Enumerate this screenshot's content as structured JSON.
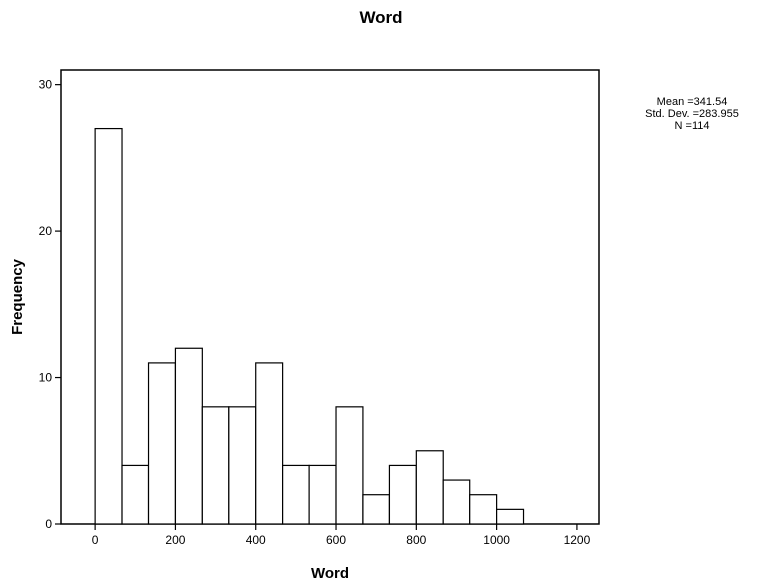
{
  "chart_data": {
    "type": "bar",
    "title": "Word",
    "xlabel": "Word",
    "ylabel": "Frequency",
    "bin_edges": [
      0,
      67,
      133,
      200,
      267,
      333,
      400,
      467,
      533,
      600,
      667,
      733,
      800,
      867,
      933,
      1000,
      1067
    ],
    "values": [
      27,
      4,
      11,
      12,
      8,
      8,
      11,
      4,
      4,
      8,
      2,
      4,
      5,
      3,
      2,
      1
    ],
    "xlim": [
      -85,
      1255
    ],
    "ylim": [
      0,
      31
    ],
    "x_ticks": [
      0,
      200,
      400,
      600,
      800,
      1000,
      1200
    ],
    "y_ticks": [
      0,
      10,
      20,
      30
    ],
    "x_tick_labels": [
      "0",
      "200",
      "400",
      "600",
      "800",
      "1000",
      "1200"
    ],
    "y_tick_labels": [
      "0",
      "10",
      "20",
      "30"
    ],
    "grid": false,
    "legend": "none",
    "stats": {
      "mean": "Mean =341.54",
      "std_dev": "Std. Dev. =283.955",
      "n": "N =114"
    }
  }
}
